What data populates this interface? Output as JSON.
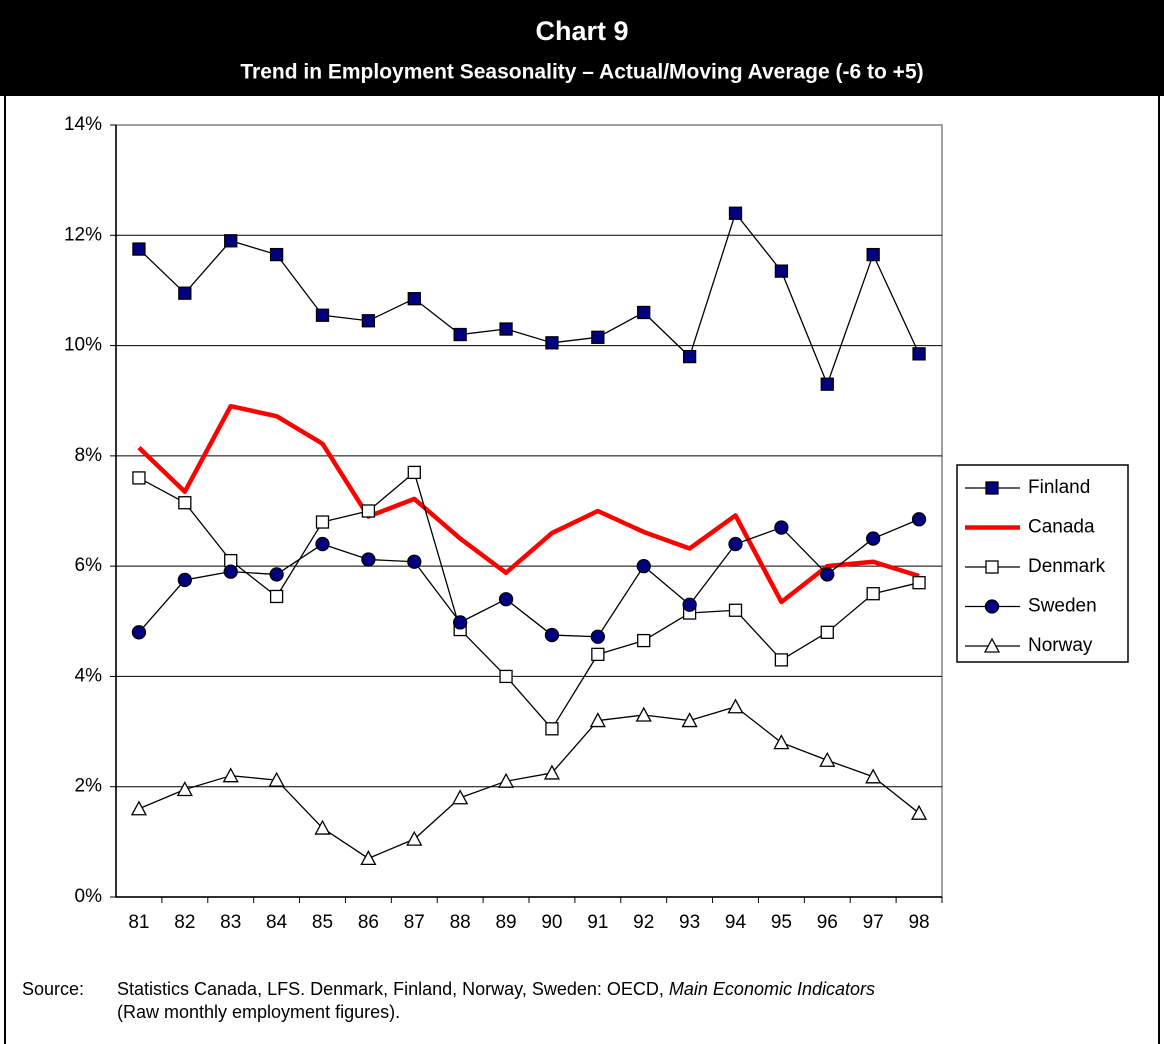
{
  "chart_data": {
    "type": "line",
    "title": "Chart 9",
    "subtitle": "Trend in Employment Seasonality – Actual/Moving Average (-6 to +5)",
    "categories": [
      "81",
      "82",
      "83",
      "84",
      "85",
      "86",
      "87",
      "88",
      "89",
      "90",
      "91",
      "92",
      "93",
      "94",
      "95",
      "96",
      "97",
      "98"
    ],
    "ylim": [
      0,
      14
    ],
    "yticks": [
      {
        "value": 0,
        "label": "0%"
      },
      {
        "value": 2,
        "label": "2%"
      },
      {
        "value": 4,
        "label": "4%"
      },
      {
        "value": 6,
        "label": "6%"
      },
      {
        "value": 8,
        "label": "8%"
      },
      {
        "value": 10,
        "label": "10%"
      },
      {
        "value": 12,
        "label": "12%"
      },
      {
        "value": 14,
        "label": "14%"
      }
    ],
    "grid": true,
    "legend": "right",
    "series": [
      {
        "name": "Finland",
        "color": "#000000",
        "marker": "square",
        "marker_color": "#000080",
        "line_width": 1.3,
        "values": [
          11.75,
          10.95,
          11.9,
          11.65,
          10.55,
          10.45,
          10.85,
          10.2,
          10.3,
          10.05,
          10.15,
          10.6,
          9.8,
          12.4,
          11.35,
          9.3,
          11.65,
          9.85
        ]
      },
      {
        "name": "Canada",
        "color": "#ff0000",
        "marker": "none",
        "marker_color": "#ff0000",
        "line_width": 4.5,
        "values": [
          8.15,
          7.35,
          8.9,
          8.72,
          8.22,
          6.9,
          7.22,
          6.5,
          5.88,
          6.6,
          7.0,
          6.62,
          6.32,
          6.92,
          5.35,
          6.0,
          6.08,
          5.82
        ]
      },
      {
        "name": "Denmark",
        "color": "#000000",
        "marker": "square",
        "marker_color": "#ffffff",
        "line_width": 1.3,
        "values": [
          7.6,
          7.15,
          6.1,
          5.45,
          6.8,
          7.0,
          7.7,
          4.85,
          4.0,
          3.05,
          4.4,
          4.65,
          5.15,
          5.2,
          4.3,
          4.8,
          5.5,
          5.7
        ]
      },
      {
        "name": "Sweden",
        "color": "#000000",
        "marker": "circle",
        "marker_color": "#000080",
        "line_width": 1.3,
        "values": [
          4.8,
          5.75,
          5.9,
          5.85,
          6.4,
          6.12,
          6.08,
          4.98,
          5.4,
          4.75,
          4.72,
          6.0,
          5.3,
          6.4,
          6.7,
          5.85,
          6.5,
          6.85
        ]
      },
      {
        "name": "Norway",
        "color": "#000000",
        "marker": "triangle",
        "marker_color": "#ffffff",
        "line_width": 1.3,
        "values": [
          1.6,
          1.95,
          2.2,
          2.12,
          1.25,
          0.7,
          1.05,
          1.8,
          2.1,
          2.25,
          3.2,
          3.3,
          3.2,
          3.45,
          2.8,
          2.48,
          2.18,
          1.52
        ]
      }
    ],
    "source": {
      "label": "Source:",
      "text": "Statistics Canada, LFS. Denmark, Finland, Norway, Sweden: OECD,",
      "italic": "Main Economic Indicators",
      "text2": "(Raw monthly employment figures)."
    }
  }
}
